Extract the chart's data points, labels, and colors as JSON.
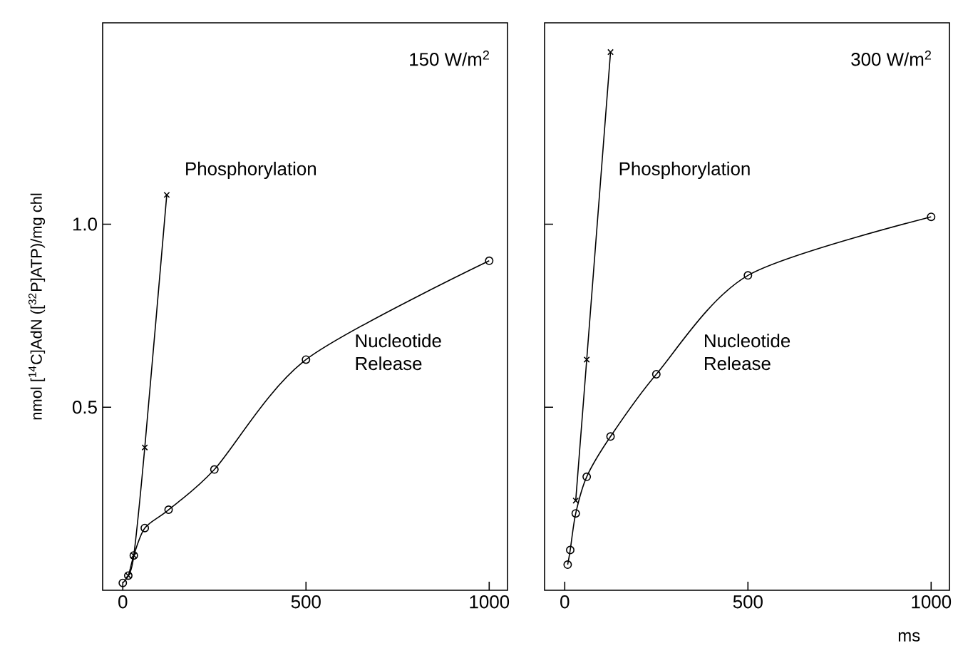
{
  "chart_data": [
    {
      "type": "line",
      "ylabel": "nmol [$^{14}$C]AdN ([$^{32}$P]ATP)/mg chl",
      "annotations": [
        "150 W/m$^{2}$"
      ],
      "xlim": [
        -55,
        1050
      ],
      "ylim": [
        0,
        1.55
      ],
      "xticks": [
        0,
        500,
        1000
      ],
      "yticks": [
        {
          "value": 0.5,
          "label": "0.5"
        },
        {
          "value": 1,
          "label": "1.0"
        }
      ],
      "line_style": "solid",
      "series": [
        {
          "name": "Phosphorylation",
          "color": "#000000",
          "marker": "cross",
          "x": [
            15,
            30,
            60,
            120
          ],
          "values": [
            0.04,
            0.095,
            0.39,
            1.08
          ]
        },
        {
          "name": "Nucleotide Release",
          "color": "#000000",
          "marker": "circle",
          "x": [
            0,
            15,
            30,
            60,
            125,
            250,
            500,
            1000
          ],
          "values": [
            0.02,
            0.04,
            0.095,
            0.17,
            0.22,
            0.33,
            0.63,
            0.9
          ]
        }
      ]
    },
    {
      "type": "line",
      "xlabel": "ms",
      "annotations": [
        "300 W/m$^{2}$"
      ],
      "xlim": [
        -55,
        1050
      ],
      "ylim": [
        0,
        1.55
      ],
      "xticks": [
        0,
        500,
        1000
      ],
      "yticks": [
        0.5,
        1
      ],
      "tick_labels": "x",
      "line_style": "solid",
      "series": [
        {
          "name": "Phosphorylation",
          "color": "#000000",
          "marker": "cross",
          "x": [
            30,
            60,
            125
          ],
          "values": [
            0.245,
            0.63,
            1.47
          ]
        },
        {
          "name": "Nucleotide Release",
          "color": "#000000",
          "marker": "circle",
          "x": [
            8,
            15,
            30,
            60,
            125,
            250,
            500,
            1000
          ],
          "values": [
            0.07,
            0.11,
            0.21,
            0.31,
            0.42,
            0.59,
            0.86,
            1.02
          ]
        }
      ]
    }
  ]
}
